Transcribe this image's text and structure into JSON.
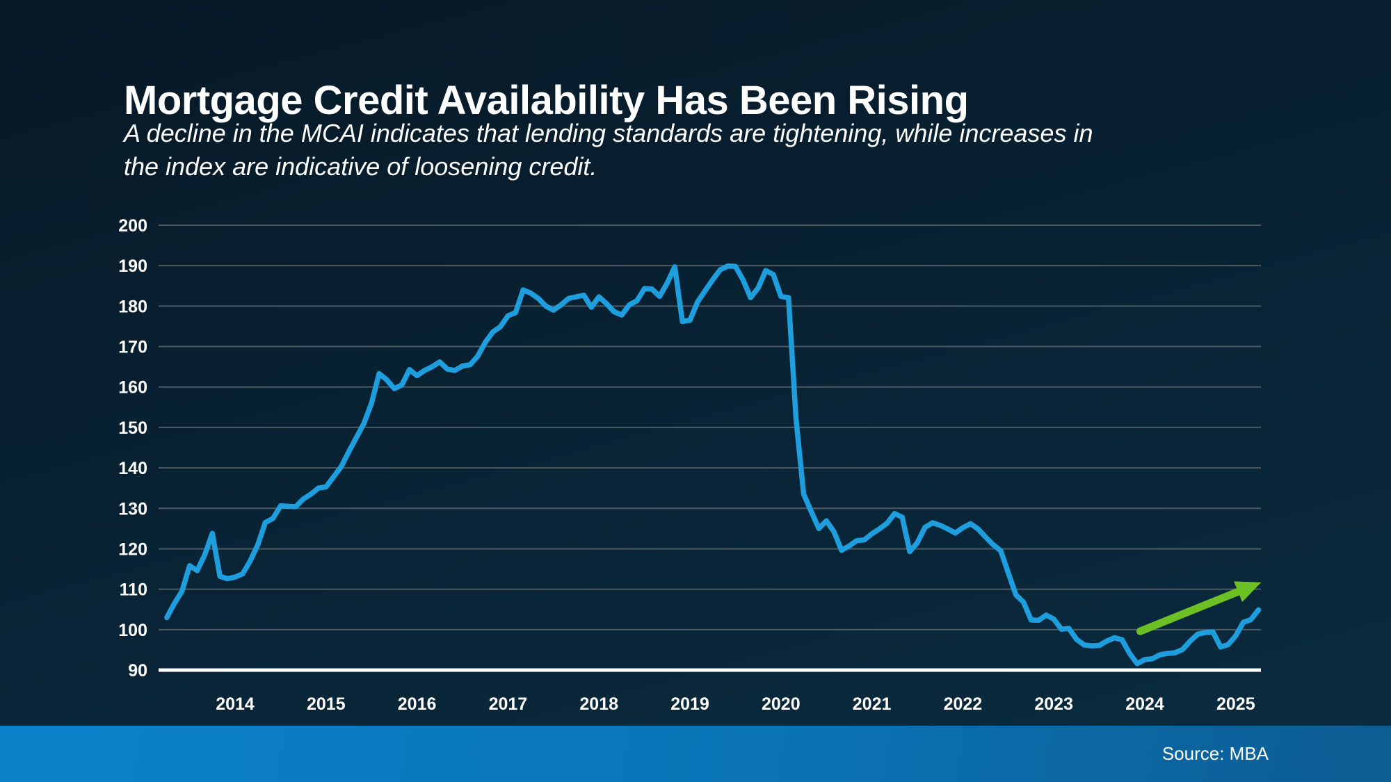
{
  "slide": {
    "title": "Mortgage Credit Availability Has Been Rising",
    "subtitle_lines": [
      "A decline in the MCAI indicates that lending standards are tightening, while increases in",
      "the index are indicative of loosening credit."
    ],
    "source_label": "Source: MBA"
  },
  "colors": {
    "background_top": "#071826",
    "background_bottom": "#0b2c40",
    "line": "#1e9edd",
    "gridline": "#4d5a62",
    "axis": "#ffffff",
    "text": "#ffffff",
    "arrow_green": "#6cc024",
    "footer_left": "#0a82ca",
    "footer_right": "#0d5c92"
  },
  "chart_data": {
    "type": "line",
    "title": "Mortgage Credit Availability Has Been Rising",
    "series_name": "MCAI",
    "xlabel": "",
    "ylabel": "",
    "grid": true,
    "ylim": [
      90,
      200
    ],
    "y_ticks": [
      200,
      190,
      180,
      170,
      160,
      150,
      140,
      130,
      120,
      110,
      100,
      90
    ],
    "x_ticks": [
      2014,
      2015,
      2016,
      2017,
      2018,
      2019,
      2020,
      2021,
      2022,
      2023,
      2024,
      2025
    ],
    "start_year_decimal": 2013.25,
    "points_per_year": 12,
    "values": [
      103,
      106.5,
      109.5,
      115.8,
      114.6,
      118.5,
      123.8,
      113.2,
      112.6,
      113,
      113.8,
      117,
      121,
      126.5,
      127.5,
      130.6,
      130.5,
      130.4,
      132.3,
      133.5,
      135,
      135.3,
      137.8,
      140.3,
      144,
      147.5,
      151,
      156,
      163.3,
      161.8,
      159.6,
      160.5,
      164.3,
      162.8,
      164.1,
      165,
      166.2,
      164.4,
      164.1,
      165.2,
      165.5,
      167.6,
      171,
      173.6,
      174.9,
      177.6,
      178.4,
      184,
      183.2,
      181.9,
      180,
      179,
      180.3,
      181.9,
      182.3,
      182.7,
      179.7,
      182.3,
      180.6,
      178.6,
      177.8,
      180.3,
      181.3,
      184.3,
      184.2,
      182.4,
      185.7,
      189.7,
      176.2,
      176.5,
      181,
      183.8,
      186.5,
      189,
      189.9,
      189.8,
      186.5,
      182.1,
      184.5,
      188.8,
      187.8,
      182.4,
      182.1,
      152,
      133.5,
      129.2,
      125,
      126.9,
      124.2,
      119.6,
      120.7,
      122,
      122.2,
      123.7,
      124.9,
      126.3,
      128.7,
      127.8,
      119.3,
      121.5,
      125.3,
      126.4,
      125.8,
      124.9,
      123.9,
      125.2,
      126.2,
      124.9,
      122.9,
      121,
      119.5,
      114,
      108.6,
      106.8,
      102.4,
      102.3,
      103.6,
      102.6,
      100.1,
      100.3,
      97.6,
      96.2,
      96,
      96.1,
      97.2,
      98,
      97.5,
      94.1,
      91.6,
      92.6,
      92.8,
      93.8,
      94.1,
      94.3,
      95.1,
      97.2,
      98.9,
      99.3,
      99.4,
      95.7,
      96.3,
      98.5,
      101.8,
      102.5,
      104.9
    ],
    "annotation_arrow": {
      "from_x": 2023.95,
      "from_y": 99.6,
      "to_x": 2025.28,
      "to_y": 111.7
    },
    "legend": "none"
  }
}
